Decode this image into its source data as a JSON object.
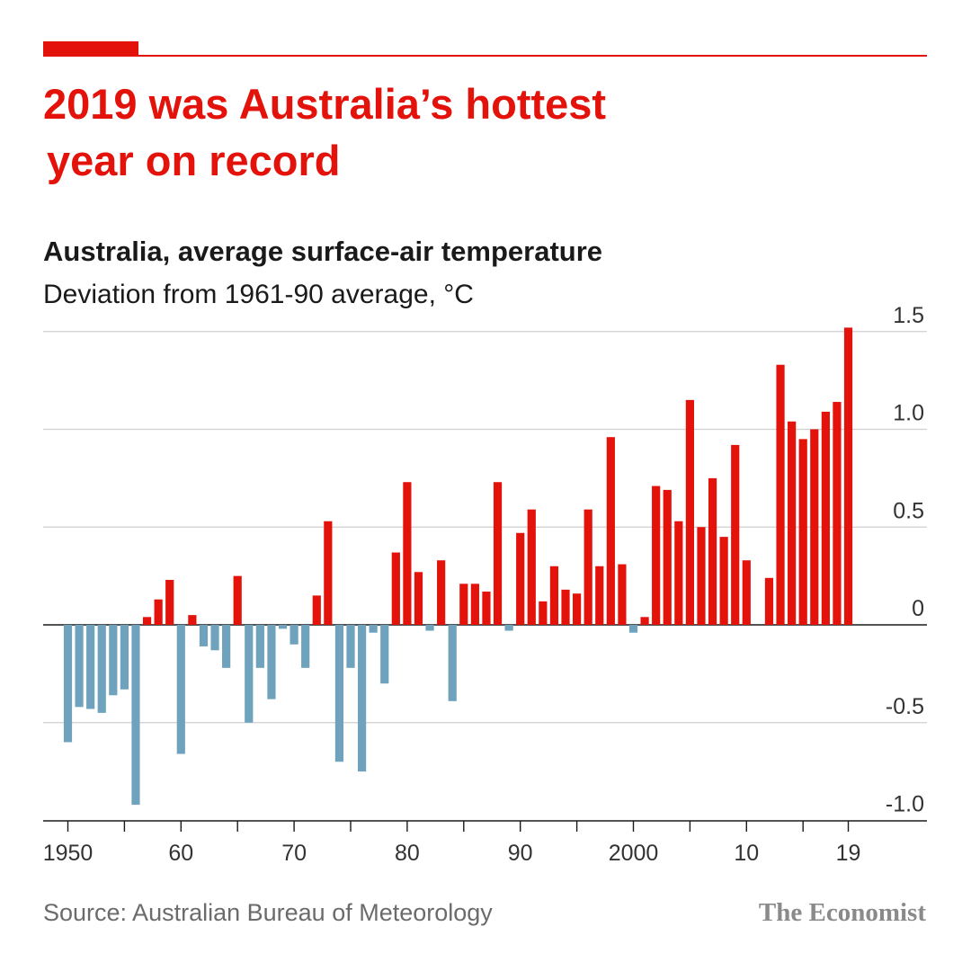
{
  "header": {
    "title_line1": "2019 was Australia’s hottest",
    "title_line2": "year on record"
  },
  "colors": {
    "accent": "#e3120b",
    "positive": "#e3120b",
    "negative": "#6fa3bd",
    "grid": "#cfcfcf",
    "axis": "#1a1a1a"
  },
  "footer": {
    "source": "Source: Australian Bureau of Meteorology",
    "brand": "The Economist"
  },
  "chart_data": {
    "type": "bar",
    "title": "Australia, average surface-air temperature",
    "ylabel": "Deviation from 1961-90 average, °C",
    "x": [
      1950,
      1951,
      1952,
      1953,
      1954,
      1955,
      1956,
      1957,
      1958,
      1959,
      1960,
      1961,
      1962,
      1963,
      1964,
      1965,
      1966,
      1967,
      1968,
      1969,
      1970,
      1971,
      1972,
      1973,
      1974,
      1975,
      1976,
      1977,
      1978,
      1979,
      1980,
      1981,
      1982,
      1983,
      1984,
      1985,
      1986,
      1987,
      1988,
      1989,
      1990,
      1991,
      1992,
      1993,
      1994,
      1995,
      1996,
      1997,
      1998,
      1999,
      2000,
      2001,
      2002,
      2003,
      2004,
      2005,
      2006,
      2007,
      2008,
      2009,
      2010,
      2011,
      2012,
      2013,
      2014,
      2015,
      2016,
      2017,
      2018,
      2019
    ],
    "values": [
      -0.6,
      -0.42,
      -0.43,
      -0.45,
      -0.36,
      -0.33,
      -0.92,
      0.04,
      0.13,
      0.23,
      -0.66,
      0.05,
      -0.11,
      -0.13,
      -0.22,
      0.25,
      -0.5,
      -0.22,
      -0.38,
      -0.02,
      -0.1,
      -0.22,
      0.15,
      0.53,
      -0.7,
      -0.22,
      -0.75,
      -0.04,
      -0.3,
      0.37,
      0.73,
      0.27,
      -0.03,
      0.33,
      -0.39,
      0.21,
      0.21,
      0.17,
      0.73,
      -0.03,
      0.47,
      0.59,
      0.12,
      0.3,
      0.18,
      0.16,
      0.59,
      0.3,
      0.96,
      0.31,
      -0.04,
      0.04,
      0.71,
      0.69,
      0.53,
      1.15,
      0.5,
      0.75,
      0.45,
      0.92,
      0.33,
      0.0,
      0.24,
      1.33,
      1.04,
      0.95,
      1.0,
      1.09,
      1.14,
      1.52
    ],
    "xtick_values": [
      1950,
      1960,
      1970,
      1980,
      1990,
      2000,
      2010,
      2019
    ],
    "xtick_labels": [
      "1950",
      "60",
      "70",
      "80",
      "90",
      "2000",
      "10",
      "19"
    ],
    "yticks": [
      1.5,
      1.0,
      0.5,
      0,
      -0.5,
      -1.0
    ],
    "ytick_labels": [
      "1.5",
      "1.0",
      "0.5",
      "0",
      "-0.5",
      "-1.0"
    ],
    "ylim": [
      -1.0,
      1.5
    ],
    "xlim": [
      1948,
      2022
    ],
    "grid": true,
    "legend": "none"
  }
}
